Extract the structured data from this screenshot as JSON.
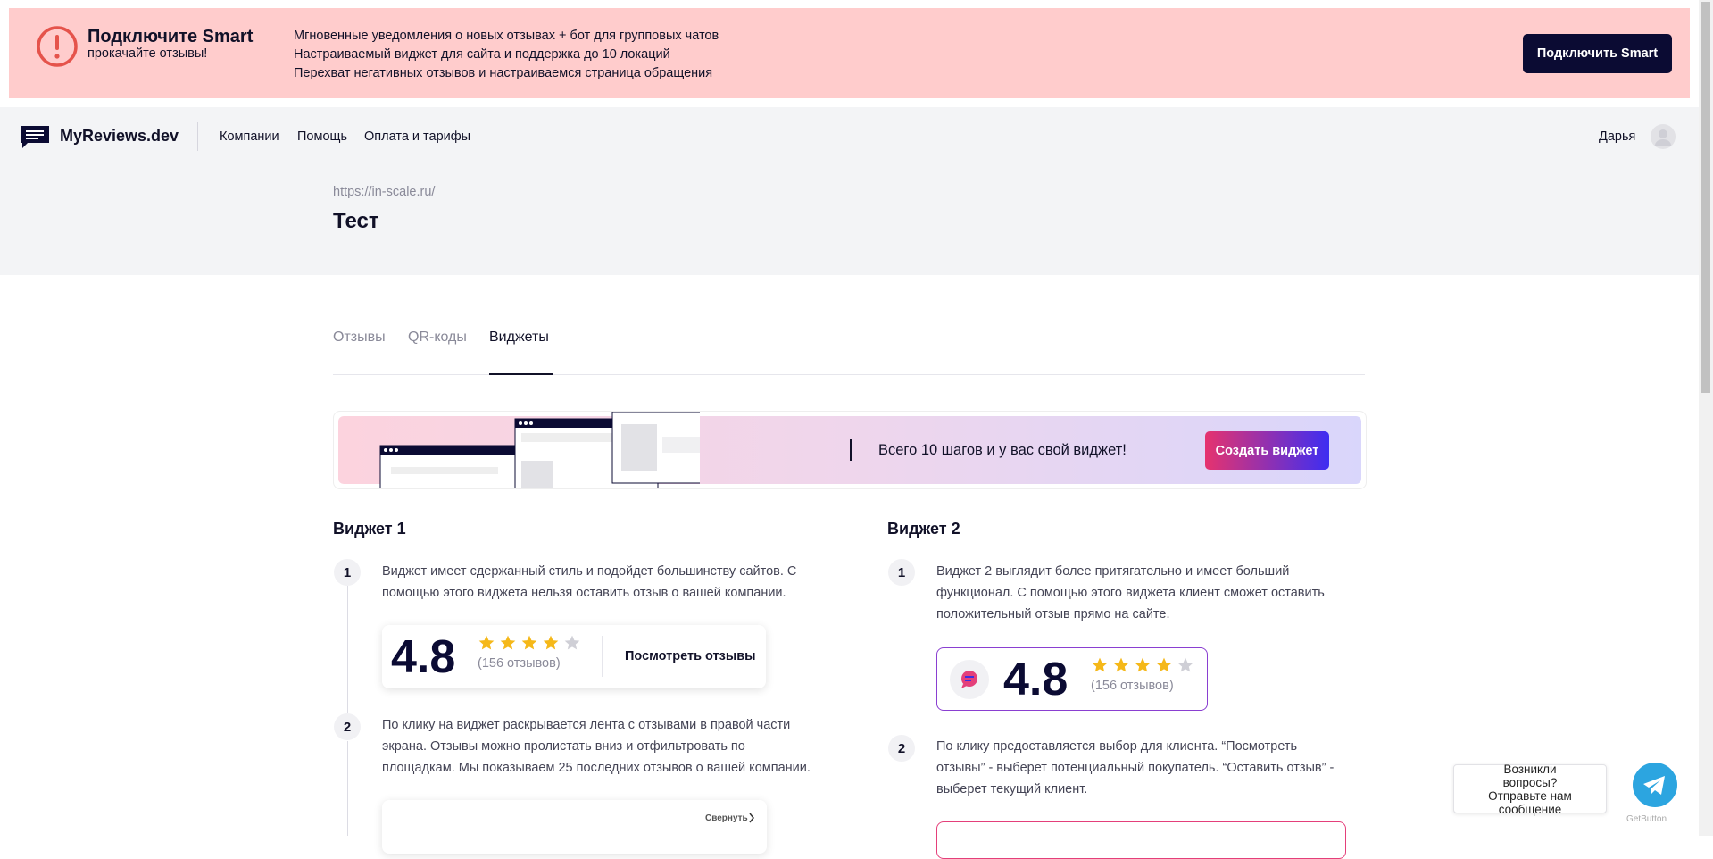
{
  "banner": {
    "title": "Подключите Smart",
    "subtitle": "прокачайте отзывы!",
    "features": [
      "Мгновенные уведомления о новых отзывах + бот для групповых чатов",
      "Настраиваемый виджет для сайта и поддержка до 10 локаций",
      "Перехват негативных отзывов и настраиваемся страница обращения"
    ],
    "button": "Подключить Smart"
  },
  "nav": {
    "logo": "MyReviews.dev",
    "links": [
      "Компании",
      "Помощь",
      "Оплата и тарифы"
    ],
    "user": "Дарья"
  },
  "company": {
    "url": "https://in-scale.ru/",
    "name": "Тест"
  },
  "tabs": [
    "Отзывы",
    "QR-коды",
    "Виджеты"
  ],
  "promo": {
    "text": "Всего 10 шагов и у вас свой виджет!",
    "button": "Создать виджет"
  },
  "widgets": [
    {
      "title": "Виджет 1",
      "steps": [
        {
          "number": 1,
          "text": "Виджет имеет сдержанный стиль и подойдет большинству сайтов. С помощью этого виджета нельзя оставить отзыв о вашей компании."
        },
        {
          "number": 2,
          "text": "По клику на виджет раскрывается лента с отзывами в правой части экрана. Отзывы можно пролистать вниз и отфильтровать по площадкам. Мы показываем 25 последних отзывов о вашей компании."
        }
      ],
      "rating": 4.8,
      "reviews": "(156 отзывов)",
      "action": "Посмотреть отзывы",
      "collapse": "Свернуть"
    },
    {
      "title": "Виджет 2",
      "steps": [
        {
          "number": 1,
          "text": "Виджет 2 выглядит более притягательно и имеет больший функционал. С помощью этого виджета клиент сможет оставить положительный отзыв прямо на сайте."
        },
        {
          "number": 2,
          "text": "По клику предоставляется выбор для клиента. “Посмотреть отзывы” - выберет потенциальный покупатель. “Оставить отзыв” - выберет текущий клиент."
        }
      ],
      "rating": 4.8,
      "reviews": "(156 отзывов)"
    }
  ],
  "chat": {
    "text": "Возникли вопросы? Отправьте нам сообщение",
    "brand": "GetButton"
  }
}
